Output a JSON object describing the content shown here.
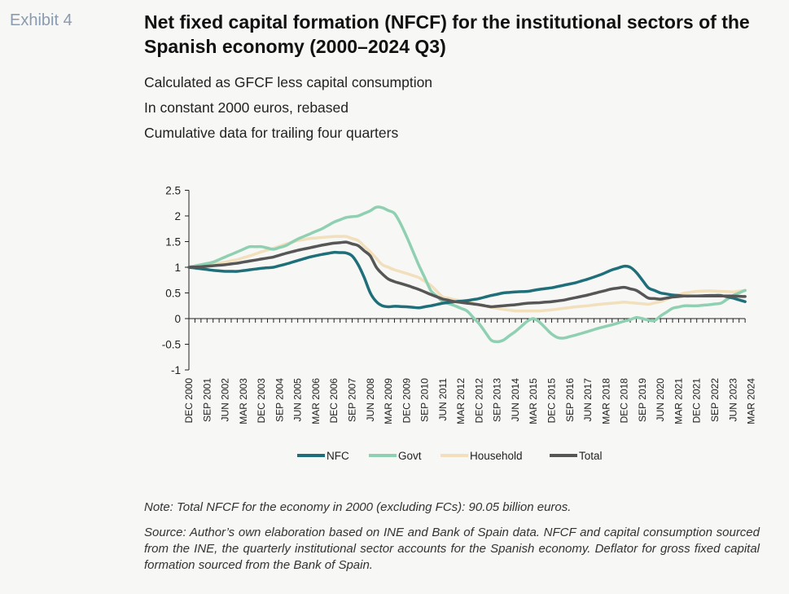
{
  "exhibit_label": "Exhibit 4",
  "title": "Net fixed capital formation (NFCF) for the institutional sectors of the Spanish economy (2000–2024 Q3)",
  "subtitles": [
    "Calculated as GFCF less capital consumption",
    "In constant 2000 euros, rebased",
    "Cumulative data for trailing four quarters"
  ],
  "note": "Note: Total NFCF for the economy in 2000 (excluding FCs): 90.05 billion euros.",
  "source": "Source: Author’s own elaboration based on INE and Bank of Spain data. NFCF and capital consumption sourced from the INE, the quarterly institutional sector accounts for the Spanish economy. Deflator for gross fixed capital formation sourced from the Bank of Spain.",
  "chart_data": {
    "type": "line",
    "x_start": "DEC 2000",
    "x_step_quarters": 1,
    "x_tick_labels": [
      "DEC 2000",
      "SEP 2001",
      "JUN 2002",
      "MAR 2003",
      "DEC 2003",
      "SEP 2004",
      "JUN 2005",
      "MAR 2006",
      "DEC 2006",
      "SEP 2007",
      "JUN 2008",
      "MAR 2009",
      "DEC 2009",
      "SEP 2010",
      "JUN 2011",
      "MAR 2012",
      "DEC 2012",
      "SEP 2013",
      "JUN 2014",
      "MAR 2015",
      "DEC 2015",
      "SEP 2016",
      "JUN 2017",
      "MAR 2018",
      "DEC 2018",
      "SEP 2019",
      "JUN 2020",
      "MAR 2021",
      "DEC 2021",
      "SEP 2022",
      "JUN 2023",
      "MAR 2024"
    ],
    "ylim": [
      -1,
      2.5
    ],
    "yticks": [
      "2.5",
      "2",
      "1.5",
      "1",
      "0.5",
      "0",
      "-0.5",
      "-1"
    ],
    "legend_position": "bottom",
    "series": [
      {
        "name": "NFC",
        "color": "#1f6f7a",
        "keypoints": [
          [
            0,
            1.0
          ],
          [
            2,
            0.97
          ],
          [
            4,
            0.94
          ],
          [
            6,
            0.92
          ],
          [
            8,
            0.92
          ],
          [
            10,
            0.95
          ],
          [
            12,
            0.98
          ],
          [
            14,
            1.0
          ],
          [
            16,
            1.06
          ],
          [
            18,
            1.13
          ],
          [
            20,
            1.2
          ],
          [
            22,
            1.25
          ],
          [
            24,
            1.29
          ],
          [
            26,
            1.28
          ],
          [
            27,
            1.22
          ],
          [
            28,
            1.05
          ],
          [
            29,
            0.8
          ],
          [
            30,
            0.5
          ],
          [
            31,
            0.33
          ],
          [
            32,
            0.25
          ],
          [
            33,
            0.23
          ],
          [
            34,
            0.24
          ],
          [
            36,
            0.23
          ],
          [
            38,
            0.21
          ],
          [
            40,
            0.25
          ],
          [
            42,
            0.3
          ],
          [
            44,
            0.33
          ],
          [
            46,
            0.35
          ],
          [
            48,
            0.39
          ],
          [
            50,
            0.45
          ],
          [
            52,
            0.5
          ],
          [
            54,
            0.52
          ],
          [
            56,
            0.53
          ],
          [
            58,
            0.57
          ],
          [
            60,
            0.6
          ],
          [
            62,
            0.65
          ],
          [
            64,
            0.7
          ],
          [
            66,
            0.77
          ],
          [
            68,
            0.85
          ],
          [
            70,
            0.95
          ],
          [
            72,
            1.02
          ],
          [
            73,
            1.0
          ],
          [
            74,
            0.9
          ],
          [
            75,
            0.75
          ],
          [
            76,
            0.6
          ],
          [
            78,
            0.5
          ],
          [
            80,
            0.46
          ],
          [
            82,
            0.44
          ],
          [
            84,
            0.44
          ],
          [
            86,
            0.45
          ],
          [
            88,
            0.45
          ],
          [
            90,
            0.4
          ],
          [
            92,
            0.33
          ]
        ]
      },
      {
        "name": "Govt",
        "color": "#8fd0b2",
        "keypoints": [
          [
            0,
            1.0
          ],
          [
            2,
            1.05
          ],
          [
            4,
            1.1
          ],
          [
            6,
            1.2
          ],
          [
            8,
            1.3
          ],
          [
            10,
            1.4
          ],
          [
            12,
            1.4
          ],
          [
            14,
            1.35
          ],
          [
            16,
            1.42
          ],
          [
            18,
            1.55
          ],
          [
            20,
            1.65
          ],
          [
            22,
            1.75
          ],
          [
            24,
            1.88
          ],
          [
            26,
            1.97
          ],
          [
            28,
            2.0
          ],
          [
            30,
            2.1
          ],
          [
            31,
            2.17
          ],
          [
            32,
            2.16
          ],
          [
            34,
            2.05
          ],
          [
            35,
            1.85
          ],
          [
            36,
            1.6
          ],
          [
            38,
            1.05
          ],
          [
            40,
            0.55
          ],
          [
            42,
            0.33
          ],
          [
            44,
            0.25
          ],
          [
            46,
            0.15
          ],
          [
            48,
            -0.1
          ],
          [
            50,
            -0.42
          ],
          [
            51,
            -0.45
          ],
          [
            52,
            -0.42
          ],
          [
            54,
            -0.25
          ],
          [
            56,
            -0.05
          ],
          [
            57,
            0.0
          ],
          [
            58,
            -0.07
          ],
          [
            60,
            -0.3
          ],
          [
            61,
            -0.37
          ],
          [
            62,
            -0.38
          ],
          [
            64,
            -0.32
          ],
          [
            66,
            -0.25
          ],
          [
            68,
            -0.18
          ],
          [
            70,
            -0.12
          ],
          [
            72,
            -0.05
          ],
          [
            73,
            -0.02
          ],
          [
            74,
            0.02
          ],
          [
            75,
            0.0
          ],
          [
            76,
            -0.03
          ],
          [
            77,
            -0.04
          ],
          [
            78,
            0.05
          ],
          [
            80,
            0.2
          ],
          [
            82,
            0.25
          ],
          [
            84,
            0.25
          ],
          [
            86,
            0.27
          ],
          [
            88,
            0.3
          ],
          [
            90,
            0.45
          ],
          [
            92,
            0.55
          ]
        ]
      },
      {
        "name": "Household",
        "color": "#f2dfbb",
        "keypoints": [
          [
            0,
            1.0
          ],
          [
            2,
            1.03
          ],
          [
            4,
            1.06
          ],
          [
            6,
            1.1
          ],
          [
            8,
            1.15
          ],
          [
            10,
            1.22
          ],
          [
            12,
            1.3
          ],
          [
            14,
            1.37
          ],
          [
            16,
            1.45
          ],
          [
            18,
            1.52
          ],
          [
            20,
            1.56
          ],
          [
            22,
            1.58
          ],
          [
            24,
            1.6
          ],
          [
            26,
            1.6
          ],
          [
            28,
            1.52
          ],
          [
            30,
            1.3
          ],
          [
            32,
            1.05
          ],
          [
            34,
            0.95
          ],
          [
            36,
            0.88
          ],
          [
            38,
            0.8
          ],
          [
            40,
            0.65
          ],
          [
            42,
            0.42
          ],
          [
            44,
            0.37
          ],
          [
            46,
            0.33
          ],
          [
            48,
            0.27
          ],
          [
            50,
            0.22
          ],
          [
            52,
            0.18
          ],
          [
            54,
            0.15
          ],
          [
            56,
            0.15
          ],
          [
            58,
            0.15
          ],
          [
            60,
            0.17
          ],
          [
            62,
            0.2
          ],
          [
            64,
            0.23
          ],
          [
            66,
            0.25
          ],
          [
            68,
            0.28
          ],
          [
            70,
            0.3
          ],
          [
            72,
            0.32
          ],
          [
            74,
            0.3
          ],
          [
            76,
            0.28
          ],
          [
            78,
            0.33
          ],
          [
            80,
            0.42
          ],
          [
            82,
            0.5
          ],
          [
            84,
            0.53
          ],
          [
            86,
            0.54
          ],
          [
            88,
            0.53
          ],
          [
            90,
            0.52
          ],
          [
            92,
            0.55
          ]
        ]
      },
      {
        "name": "Total",
        "color": "#565656",
        "keypoints": [
          [
            0,
            1.0
          ],
          [
            2,
            1.01
          ],
          [
            4,
            1.03
          ],
          [
            6,
            1.05
          ],
          [
            8,
            1.08
          ],
          [
            10,
            1.12
          ],
          [
            12,
            1.16
          ],
          [
            14,
            1.2
          ],
          [
            16,
            1.27
          ],
          [
            18,
            1.33
          ],
          [
            20,
            1.38
          ],
          [
            22,
            1.43
          ],
          [
            24,
            1.47
          ],
          [
            26,
            1.49
          ],
          [
            28,
            1.42
          ],
          [
            30,
            1.22
          ],
          [
            31,
            1.0
          ],
          [
            32,
            0.87
          ],
          [
            33,
            0.77
          ],
          [
            34,
            0.72
          ],
          [
            36,
            0.65
          ],
          [
            38,
            0.57
          ],
          [
            40,
            0.47
          ],
          [
            42,
            0.38
          ],
          [
            44,
            0.33
          ],
          [
            46,
            0.3
          ],
          [
            48,
            0.27
          ],
          [
            50,
            0.23
          ],
          [
            52,
            0.25
          ],
          [
            54,
            0.27
          ],
          [
            56,
            0.3
          ],
          [
            58,
            0.31
          ],
          [
            60,
            0.33
          ],
          [
            62,
            0.36
          ],
          [
            64,
            0.41
          ],
          [
            66,
            0.46
          ],
          [
            68,
            0.52
          ],
          [
            70,
            0.58
          ],
          [
            72,
            0.61
          ],
          [
            74,
            0.55
          ],
          [
            76,
            0.4
          ],
          [
            78,
            0.38
          ],
          [
            80,
            0.42
          ],
          [
            82,
            0.44
          ],
          [
            84,
            0.44
          ],
          [
            86,
            0.44
          ],
          [
            88,
            0.44
          ],
          [
            90,
            0.44
          ],
          [
            92,
            0.43
          ]
        ]
      }
    ]
  }
}
